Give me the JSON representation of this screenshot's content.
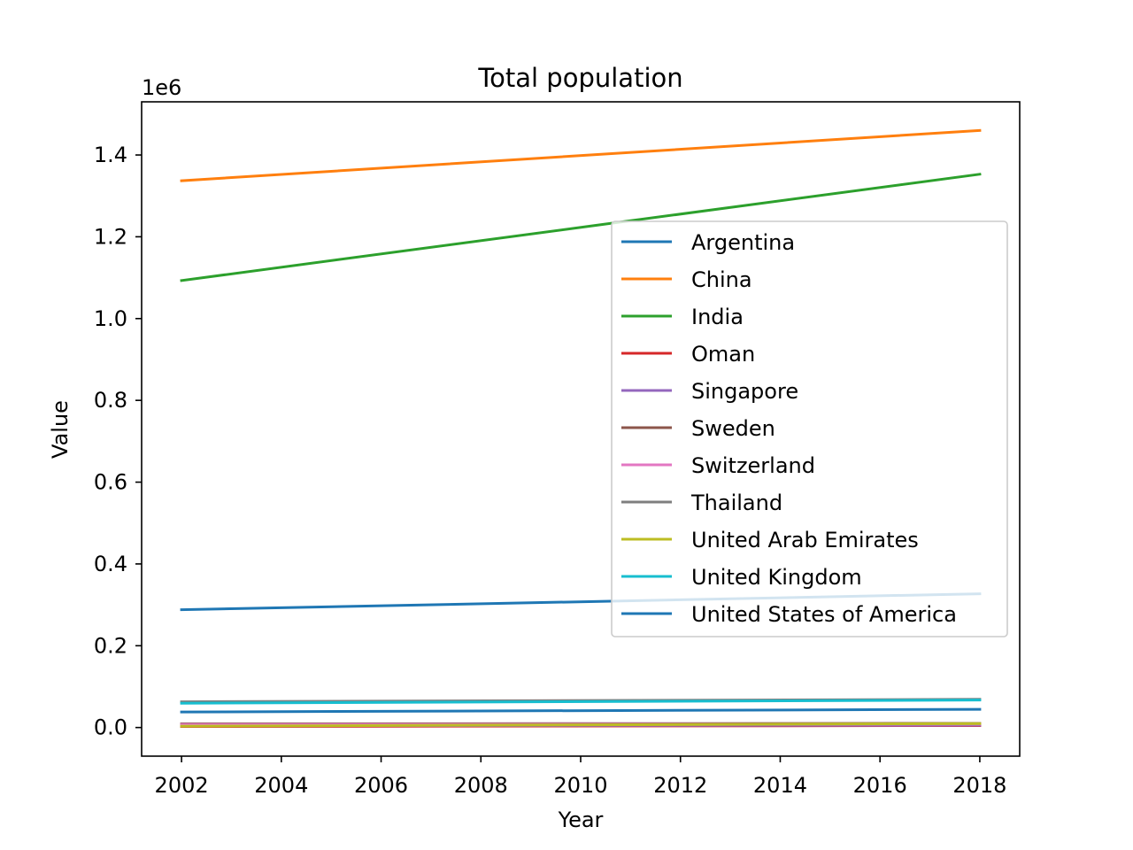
{
  "chart_data": {
    "type": "line",
    "title": "Total population",
    "xlabel": "Year",
    "ylabel": "Value",
    "y_multiplier_label": "1e6",
    "xlim": [
      2001.2,
      2018.8
    ],
    "ylim": [
      -70000,
      1530000
    ],
    "xticks": [
      2002,
      2004,
      2006,
      2008,
      2010,
      2012,
      2014,
      2016,
      2018
    ],
    "yticks": [
      0,
      200000,
      400000,
      600000,
      800000,
      1000000,
      1200000,
      1400000
    ],
    "ytick_labels": [
      "0.0",
      "0.2",
      "0.4",
      "0.6",
      "0.8",
      "1.0",
      "1.2",
      "1.4"
    ],
    "grid": false,
    "legend_position": "center-right",
    "x": [
      2002,
      2018
    ],
    "series": [
      {
        "name": "Argentina",
        "color": "#1f77b4",
        "values": [
          38000,
          44500
        ]
      },
      {
        "name": "China",
        "color": "#ff7f0e",
        "values": [
          1337000,
          1460000
        ]
      },
      {
        "name": "India",
        "color": "#2ca02c",
        "values": [
          1093000,
          1353000
        ]
      },
      {
        "name": "Oman",
        "color": "#d62728",
        "values": [
          2400,
          4800
        ]
      },
      {
        "name": "Singapore",
        "color": "#9467bd",
        "values": [
          4200,
          5800
        ]
      },
      {
        "name": "Sweden",
        "color": "#8c564b",
        "values": [
          8900,
          10100
        ]
      },
      {
        "name": "Switzerland",
        "color": "#e377c2",
        "values": [
          7300,
          8500
        ]
      },
      {
        "name": "Thailand",
        "color": "#7f7f7f",
        "values": [
          63000,
          69000
        ]
      },
      {
        "name": "United Arab Emirates",
        "color": "#bcbd22",
        "values": [
          3300,
          9600
        ]
      },
      {
        "name": "United Kingdom",
        "color": "#17becf",
        "values": [
          59400,
          67100
        ]
      },
      {
        "name": "United States of America",
        "color": "#1f77b4",
        "values": [
          288000,
          327000
        ]
      }
    ]
  }
}
